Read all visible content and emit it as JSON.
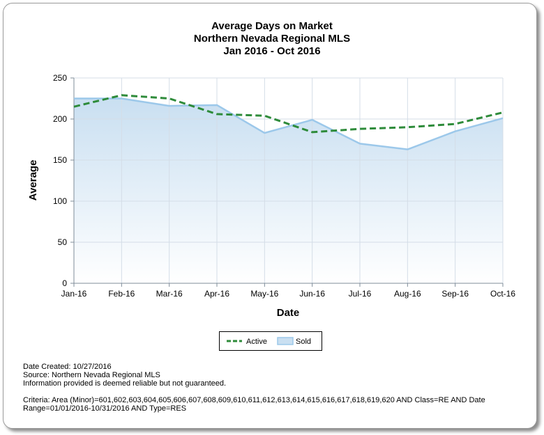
{
  "colors": {
    "active": "#2e8b3a",
    "sold_line": "#9cc8ea",
    "sold_fill_top": "#c9dff1",
    "sold_fill_bottom": "#ffffff",
    "grid": "#d4dde7",
    "axis": "#7f8c99"
  },
  "chart_data": {
    "type": "area",
    "title": [
      "Average Days on Market",
      "Northern Nevada Regional MLS",
      "Jan 2016 - Oct 2016"
    ],
    "xlabel": "Date",
    "ylabel": "Average",
    "categories": [
      "Jan-16",
      "Feb-16",
      "Mar-16",
      "Apr-16",
      "May-16",
      "Jun-16",
      "Jul-16",
      "Aug-16",
      "Sep-16",
      "Oct-16"
    ],
    "ylim": [
      0,
      250
    ],
    "yticks": [
      0,
      50,
      100,
      150,
      200,
      250
    ],
    "grid": true,
    "legend_position": "bottom",
    "series": [
      {
        "name": "Active",
        "style": "dashed-line",
        "values": [
          215,
          229,
          225,
          206,
          204,
          184,
          188,
          190,
          194,
          208
        ]
      },
      {
        "name": "Sold",
        "style": "area",
        "values": [
          225,
          225,
          216,
          217,
          183,
          199,
          170,
          163,
          185,
          201
        ]
      }
    ]
  },
  "footer": {
    "date_created": "Date Created: 10/27/2016",
    "source": "Source: Northern Nevada Regional MLS",
    "disclaimer": "Information provided is deemed reliable but not guaranteed.",
    "criteria_line1": "Criteria: Area (Minor)=601,602,603,604,605,606,607,608,609,610,611,612,613,614,615,616,617,618,619,620 AND Class=RE AND Date",
    "criteria_line2": "Range=01/01/2016-10/31/2016 AND Type=RES"
  }
}
